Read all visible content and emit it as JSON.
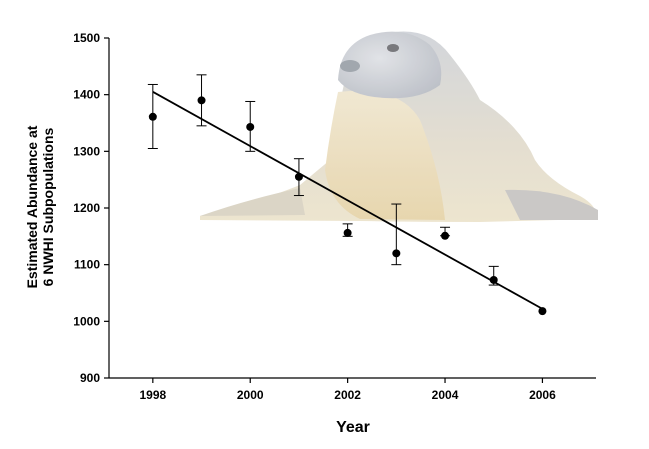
{
  "chart_data": {
    "type": "scatter",
    "title": "",
    "xlabel": "Year",
    "ylabel_lines": [
      "Estimated Abundance at",
      "6 NWHI Subpopulations"
    ],
    "xlim": [
      1997.1,
      2007.1
    ],
    "ylim": [
      900,
      1500
    ],
    "x_ticks": [
      1998,
      2000,
      2002,
      2004,
      2006
    ],
    "y_ticks": [
      900,
      1000,
      1100,
      1200,
      1300,
      1400,
      1500
    ],
    "grid": false,
    "legend": "none",
    "series": [
      {
        "points": [
          {
            "x": 1998,
            "y": 1361,
            "err_low": 1305,
            "err_high": 1418
          },
          {
            "x": 1999,
            "y": 1390,
            "err_low": 1345,
            "err_high": 1435
          },
          {
            "x": 2000,
            "y": 1343,
            "err_low": 1300,
            "err_high": 1388
          },
          {
            "x": 2001,
            "y": 1255,
            "err_low": 1222,
            "err_high": 1287
          },
          {
            "x": 2002,
            "y": 1156,
            "err_low": 1150,
            "err_high": 1172
          },
          {
            "x": 2003,
            "y": 1120,
            "err_low": 1100,
            "err_high": 1207
          },
          {
            "x": 2004,
            "y": 1151,
            "err_low": 1151,
            "err_high": 1166
          },
          {
            "x": 2005,
            "y": 1073,
            "err_low": 1064,
            "err_high": 1097
          },
          {
            "x": 2006,
            "y": 1018,
            "err_low": 1018,
            "err_high": 1018
          }
        ]
      }
    ],
    "trendline": {
      "x": [
        1998,
        2006
      ],
      "y": [
        1405,
        1022
      ]
    },
    "background_image": "monk-seal-photo",
    "colors": {
      "marker": "#000000",
      "line": "#000000",
      "axis": "#000000"
    }
  }
}
